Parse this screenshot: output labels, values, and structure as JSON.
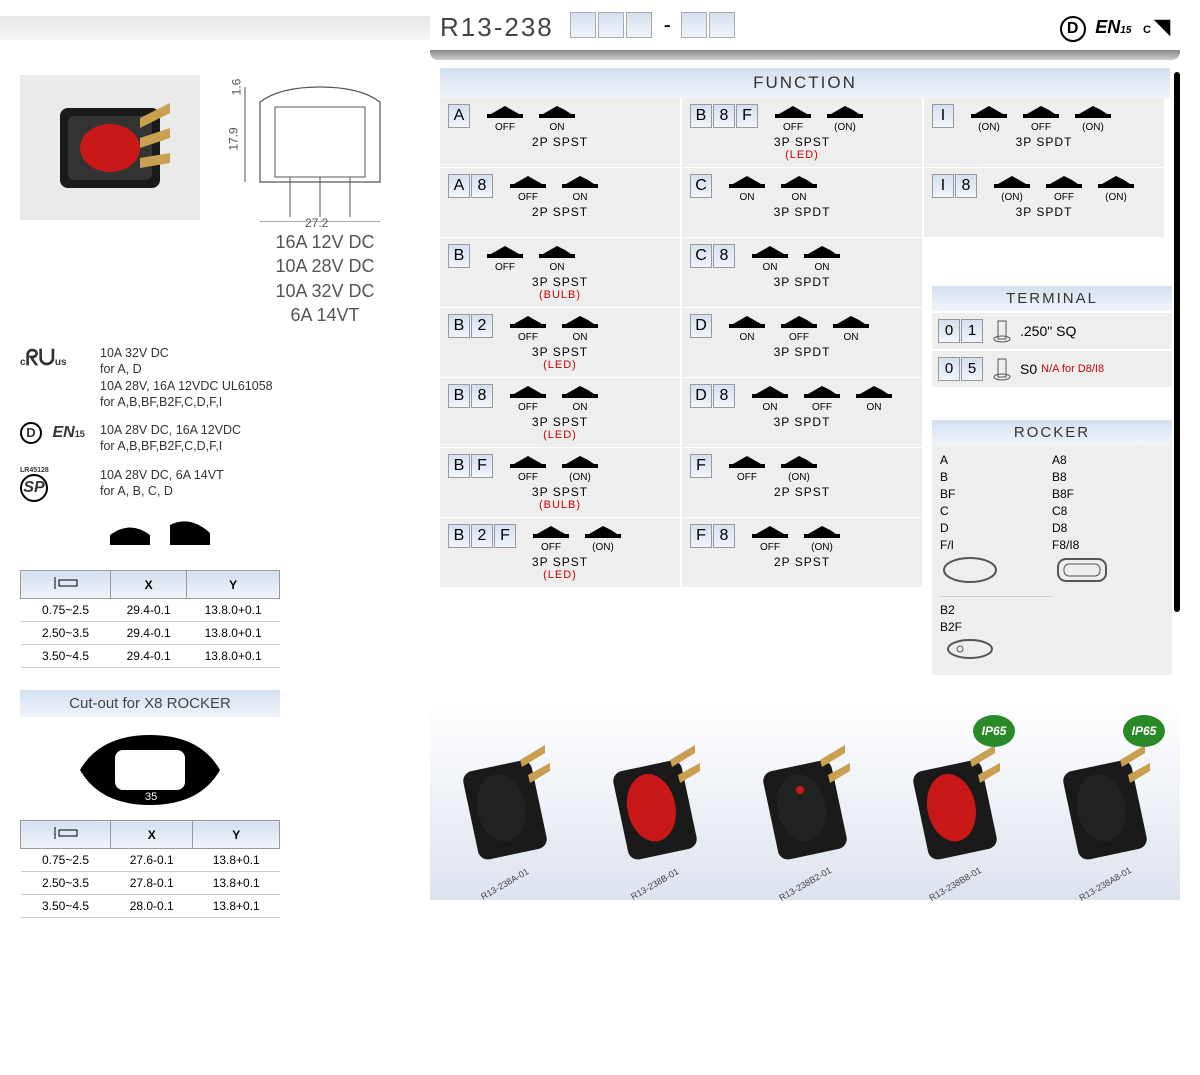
{
  "header": {
    "part": "R13-238",
    "dash": "-"
  },
  "dims": {
    "w": "27.2",
    "h": "17.9",
    "t": "1.6"
  },
  "ratings": [
    "16A 12V DC",
    "10A 28V DC",
    "10A 32V DC",
    "6A 14VT"
  ],
  "certs": [
    {
      "icon": "UL",
      "l1": "10A 32V DC",
      "l2": "for A, D",
      "l3": "10A 28V, 16A 12VDC UL61058",
      "l4": "for A,B,BF,B2F,C,D,F,I"
    },
    {
      "icon": "D",
      "l1": "10A 28V DC, 16A 12VDC",
      "l2": "for A,B,BF,B2F,C,D,F,I"
    },
    {
      "icon": "CSA",
      "sub": "LR45128",
      "l1": "10A 28V DC, 6A 14VT",
      "l2": "for A, B, C, D"
    }
  ],
  "tbl1": {
    "headers": [
      "",
      "X",
      "Y"
    ],
    "iconhdr": "thickness-icon",
    "rows": [
      [
        "0.75~2.5",
        "29.4-0.1",
        "13.8.0+0.1"
      ],
      [
        "2.50~3.5",
        "29.4-0.1",
        "13.8.0+0.1"
      ],
      [
        "3.50~4.5",
        "29.4-0.1",
        "13.8.0+0.1"
      ]
    ]
  },
  "cutout": {
    "label": "Cut-out for X8 ROCKER",
    "dim": "35"
  },
  "tbl2": {
    "headers": [
      "",
      "X",
      "Y"
    ],
    "rows": [
      [
        "0.75~2.5",
        "27.6-0.1",
        "13.8+0.1"
      ],
      [
        "2.50~3.5",
        "27.8-0.1",
        "13.8+0.1"
      ],
      [
        "3.50~4.5",
        "28.0-0.1",
        "13.8+0.1"
      ]
    ]
  },
  "func": {
    "title": "FUNCTION",
    "col1": [
      {
        "code": "A",
        "sw": [
          {
            "l": "OFF"
          },
          {
            "l": "ON"
          }
        ],
        "desc": "2P SPST"
      },
      {
        "code": "A8",
        "sw": [
          {
            "l": "OFF"
          },
          {
            "l": "ON"
          }
        ],
        "desc": "2P SPST"
      },
      {
        "code": "B",
        "sw": [
          {
            "l": "OFF"
          },
          {
            "l": "ON"
          }
        ],
        "desc": "3P SPST",
        "sub": "(BULB)"
      },
      {
        "code": "B2",
        "sw": [
          {
            "l": "OFF"
          },
          {
            "l": "ON"
          }
        ],
        "desc": "3P SPST",
        "sub": "(LED)"
      },
      {
        "code": "B8",
        "sw": [
          {
            "l": "OFF"
          },
          {
            "l": "ON"
          }
        ],
        "desc": "3P SPST",
        "sub": "(LED)"
      },
      {
        "code": "BF",
        "sw": [
          {
            "l": "OFF"
          },
          {
            "l": "(ON)"
          }
        ],
        "desc": "3P SPST",
        "sub": "(BULB)"
      },
      {
        "code": "B2F",
        "sw": [
          {
            "l": "OFF"
          },
          {
            "l": "(ON)"
          }
        ],
        "desc": "3P SPST",
        "sub": "(LED)"
      }
    ],
    "col2": [
      {
        "code": "B8F",
        "sw": [
          {
            "l": "OFF"
          },
          {
            "l": "(ON)"
          }
        ],
        "desc": "3P SPST",
        "sub": "(LED)",
        "tall": true
      },
      {
        "code": "C",
        "sw": [
          {
            "l": "ON"
          },
          {
            "l": "ON"
          }
        ],
        "desc": "3P SPDT"
      },
      {
        "code": "C8",
        "sw": [
          {
            "l": "ON"
          },
          {
            "l": "ON"
          }
        ],
        "desc": "3P SPDT"
      },
      {
        "code": "D",
        "sw": [
          {
            "l": "ON"
          },
          {
            "l": "OFF"
          },
          {
            "l": "ON"
          }
        ],
        "desc": "3P SPDT"
      },
      {
        "code": "D8",
        "sw": [
          {
            "l": "ON"
          },
          {
            "l": "OFF"
          },
          {
            "l": "ON"
          }
        ],
        "desc": "3P SPDT"
      },
      {
        "code": "F",
        "sw": [
          {
            "l": "OFF"
          },
          {
            "l": "(ON)"
          }
        ],
        "desc": "2P SPST"
      },
      {
        "code": "F8",
        "sw": [
          {
            "l": "OFF"
          },
          {
            "l": "(ON)"
          }
        ],
        "desc": "2P SPST"
      }
    ],
    "col3": [
      {
        "code": "I",
        "sw": [
          {
            "l": "(ON)"
          },
          {
            "l": "OFF"
          },
          {
            "l": "(ON)"
          }
        ],
        "desc": "3P SPDT"
      },
      {
        "code": "I8",
        "sw": [
          {
            "l": "(ON)"
          },
          {
            "l": "OFF"
          },
          {
            "l": "(ON)"
          }
        ],
        "desc": "3P SPDT"
      }
    ]
  },
  "term": {
    "title": "TERMINAL",
    "rows": [
      {
        "code": "01",
        "label": ".250\" SQ"
      },
      {
        "code": "05",
        "label": "S0",
        "na": "N/A for D8/I8"
      }
    ]
  },
  "rock": {
    "title": "ROCKER",
    "left": [
      "A",
      "B",
      "BF",
      "C",
      "D",
      "F/I"
    ],
    "right": [
      "A8",
      "B8",
      "B8F",
      "C8",
      "D8",
      "F8/I8"
    ],
    "b2": [
      "B2",
      "B2F"
    ]
  },
  "prods": [
    {
      "label": "R13-238A-01",
      "color": "#222"
    },
    {
      "label": "R13-238B-01",
      "color": "#c91818"
    },
    {
      "label": "R13-238B2-01",
      "color": "#222",
      "dot": true
    },
    {
      "label": "R13-238B8-01",
      "color": "#c91818",
      "ip65": true
    },
    {
      "label": "R13-238A8-01",
      "color": "#222",
      "ip65": true
    }
  ],
  "ip65": "IP65"
}
